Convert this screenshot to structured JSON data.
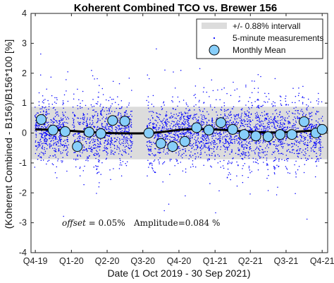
{
  "chart_data": {
    "type": "scatter",
    "title": "Koherent Combined TCO vs. Brewer 156",
    "xlabel": "Date (1 Oct 2019 - 30 Sep 2021)",
    "ylabel": "(Koherent Combined - B156)/B156*100 [%]",
    "xlim": [
      "2019-09-20",
      "2021-10-15"
    ],
    "ylim": [
      -4,
      4
    ],
    "x_ticks": [
      {
        "label": "Q4-19",
        "date": "2019-10-01"
      },
      {
        "label": "Q1-20",
        "date": "2020-01-01"
      },
      {
        "label": "Q2-20",
        "date": "2020-04-01"
      },
      {
        "label": "Q3-20",
        "date": "2020-07-01"
      },
      {
        "label": "Q4-20",
        "date": "2020-10-01"
      },
      {
        "label": "Q1-21",
        "date": "2021-01-01"
      },
      {
        "label": "Q2-21",
        "date": "2021-04-01"
      },
      {
        "label": "Q3-21",
        "date": "2021-07-01"
      },
      {
        "label": "Q4-21",
        "date": "2021-10-01"
      }
    ],
    "y_ticks": [
      -4,
      -3,
      -2,
      -1,
      0,
      1,
      2,
      3,
      4
    ],
    "grid": false,
    "legend_position": "top-right",
    "legend": [
      {
        "label": "+/- 0.88% intervall",
        "kind": "band",
        "color": "#dcdcdc"
      },
      {
        "label": "5-minute measurements",
        "kind": "dots",
        "color": "#0000ff"
      },
      {
        "label": "Monthly Mean",
        "kind": "marker",
        "color": "#87cefa"
      }
    ],
    "band": {
      "lower": -0.88,
      "upper": 0.88,
      "color": "#dcdcdc"
    },
    "annotation": {
      "offset_label": "offset",
      "offset_value": " = 0.05%",
      "amplitude_text": "Amplitude=0.084 %"
    },
    "series": [
      {
        "name": "Monthly Mean",
        "points": [
          {
            "x": "2019-10-16",
            "y": 0.45
          },
          {
            "x": "2019-11-15",
            "y": 0.1
          },
          {
            "x": "2019-12-16",
            "y": 0.05
          },
          {
            "x": "2020-01-16",
            "y": -0.45
          },
          {
            "x": "2020-02-15",
            "y": 0.03
          },
          {
            "x": "2020-03-16",
            "y": -0.02
          },
          {
            "x": "2020-04-15",
            "y": 0.42
          },
          {
            "x": "2020-05-16",
            "y": 0.4
          },
          {
            "x": "2020-07-16",
            "y": 0.0
          },
          {
            "x": "2020-08-16",
            "y": -0.35
          },
          {
            "x": "2020-09-15",
            "y": -0.45
          },
          {
            "x": "2020-10-16",
            "y": -0.28
          },
          {
            "x": "2020-11-15",
            "y": 0.18
          },
          {
            "x": "2020-12-16",
            "y": 0.1
          },
          {
            "x": "2021-01-16",
            "y": 0.35
          },
          {
            "x": "2021-02-15",
            "y": 0.12
          },
          {
            "x": "2021-03-16",
            "y": -0.05
          },
          {
            "x": "2021-04-15",
            "y": -0.1
          },
          {
            "x": "2021-05-16",
            "y": -0.12
          },
          {
            "x": "2021-06-16",
            "y": -0.05
          },
          {
            "x": "2021-07-16",
            "y": -0.05
          },
          {
            "x": "2021-08-16",
            "y": 0.38
          },
          {
            "x": "2021-09-15",
            "y": 0.0
          },
          {
            "x": "2021-10-01",
            "y": 0.12
          }
        ]
      },
      {
        "name": "Fit",
        "points": [
          {
            "x": "2019-10-01",
            "y": 0.12
          },
          {
            "x": "2019-11-15",
            "y": 0.11
          },
          {
            "x": "2020-01-01",
            "y": 0.07
          },
          {
            "x": "2020-02-15",
            "y": 0.03
          },
          {
            "x": "2020-04-01",
            "y": 0.0
          },
          {
            "x": "2020-05-15",
            "y": -0.01
          },
          {
            "x": "2020-07-01",
            "y": -0.01
          },
          {
            "x": "2020-08-15",
            "y": 0.03
          },
          {
            "x": "2020-09-15",
            "y": 0.08
          },
          {
            "x": "2020-10-15",
            "y": 0.12
          },
          {
            "x": "2020-11-15",
            "y": 0.13
          },
          {
            "x": "2021-01-01",
            "y": 0.12
          },
          {
            "x": "2021-02-15",
            "y": 0.08
          },
          {
            "x": "2021-04-01",
            "y": 0.04
          },
          {
            "x": "2021-05-15",
            "y": 0.02
          },
          {
            "x": "2021-07-01",
            "y": 0.03
          },
          {
            "x": "2021-08-15",
            "y": 0.06
          },
          {
            "x": "2021-10-01",
            "y": 0.11
          }
        ]
      }
    ]
  }
}
